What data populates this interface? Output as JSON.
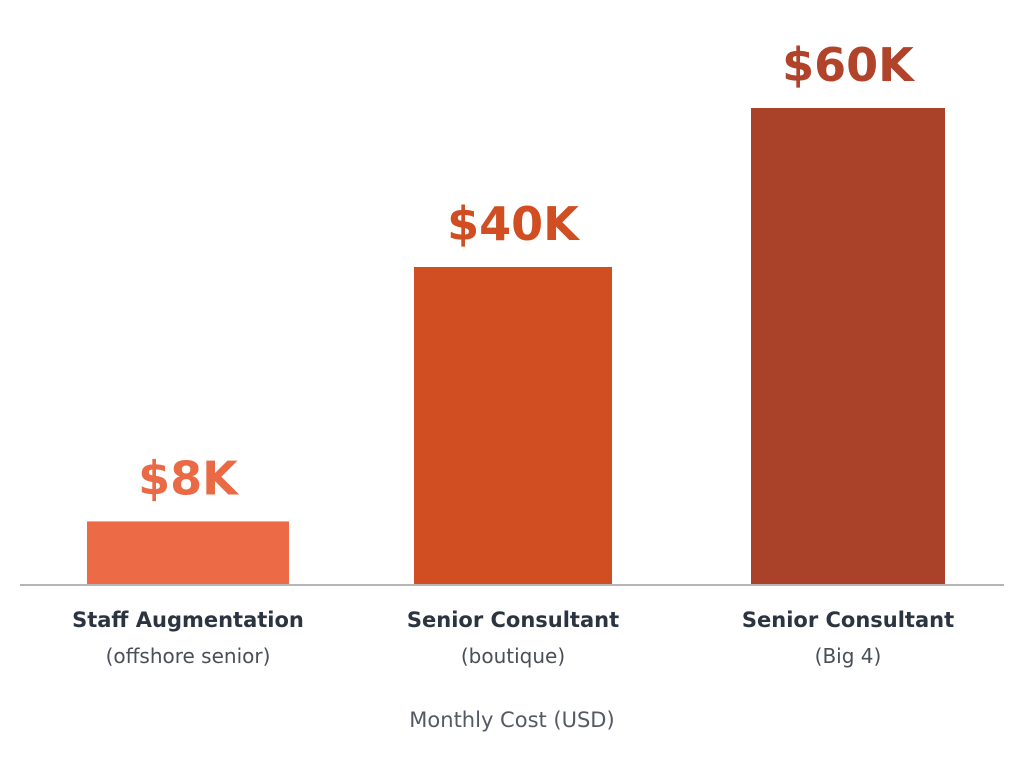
{
  "chart_data": {
    "type": "bar",
    "categories": [
      "Staff Augmentation",
      "Senior Consultant",
      "Senior Consultant"
    ],
    "category_sublabels": [
      "(offshore senior)",
      "(boutique)",
      "(Big 4)"
    ],
    "values": [
      8,
      40,
      60
    ],
    "value_labels": [
      "$8K",
      "$40K",
      "$60K"
    ],
    "bar_colors": [
      "#ec6a45",
      "#d04e22",
      "#aa4129"
    ],
    "label_colors": [
      "#ea6a45",
      "#d04e22",
      "#b0432a"
    ],
    "xlabel": "Monthly Cost (USD)",
    "ylabel": "",
    "title": "",
    "ylim": [
      0,
      60
    ],
    "grid": false,
    "legend": "none",
    "axis_color": "#b5b5b5"
  }
}
